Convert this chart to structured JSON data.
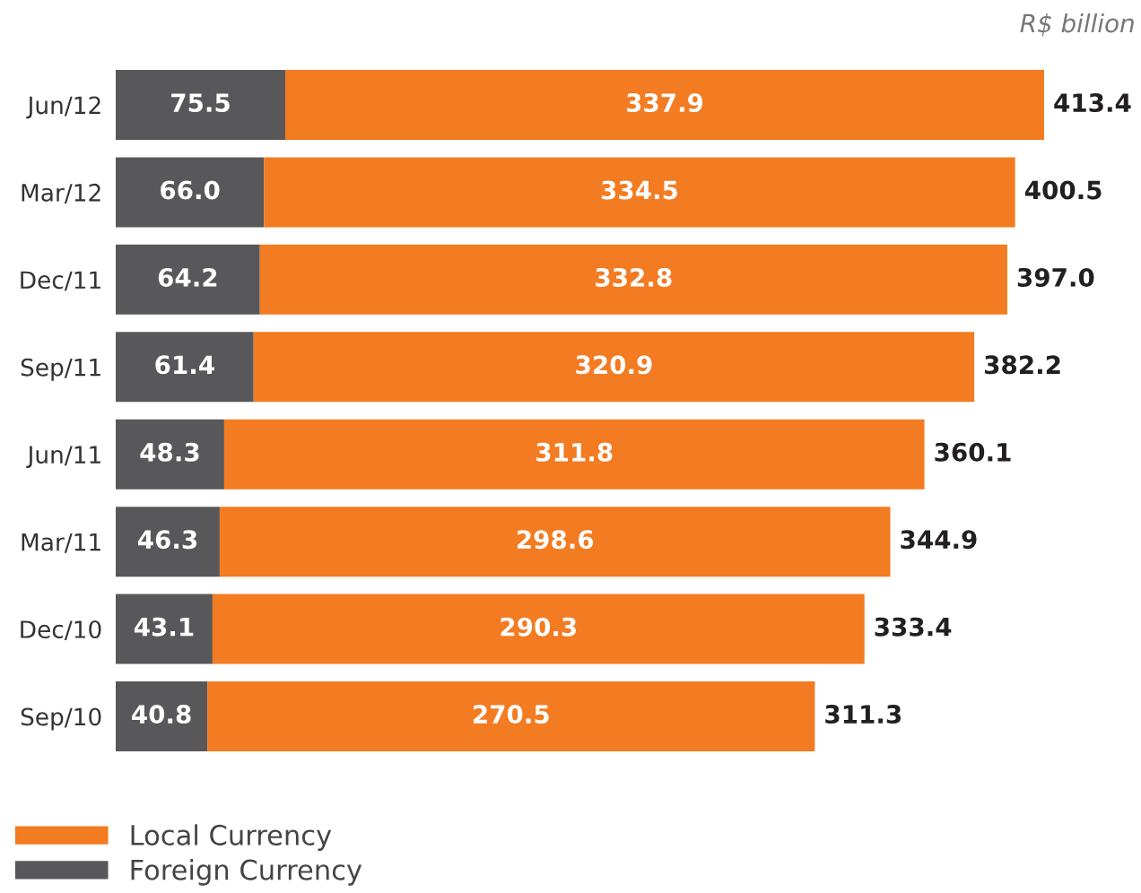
{
  "chart_data": {
    "type": "bar",
    "orientation": "horizontal",
    "stacked": true,
    "legend": "bottom left",
    "annotations": [
      "R$ billion"
    ],
    "categories": [
      "Jun/12",
      "Mar/12",
      "Dec/11",
      "Sep/11",
      "Jun/11",
      "Mar/11",
      "Dec/10",
      "Sep/10"
    ],
    "series": [
      {
        "name": "Foreign Currency",
        "color": "#58585a",
        "values": [
          75.5,
          66.0,
          64.2,
          61.4,
          48.3,
          46.3,
          43.1,
          40.8
        ],
        "value_labels": [
          "75.5",
          "66.0",
          "64.2",
          "61.4",
          "48.3",
          "46.3",
          "43.1",
          "40.8"
        ]
      },
      {
        "name": "Local Currency",
        "color": "#f37b21",
        "values": [
          337.9,
          334.5,
          332.8,
          320.9,
          311.8,
          298.6,
          290.3,
          270.5
        ],
        "value_labels": [
          "337.9",
          "334.5",
          "332.8",
          "320.9",
          "311.8",
          "298.6",
          "290.3",
          "270.5"
        ]
      }
    ],
    "totals": [
      "413.4",
      "400.5",
      "397.0",
      "382.2",
      "360.1",
      "344.9",
      "333.4",
      "311.3"
    ]
  }
}
